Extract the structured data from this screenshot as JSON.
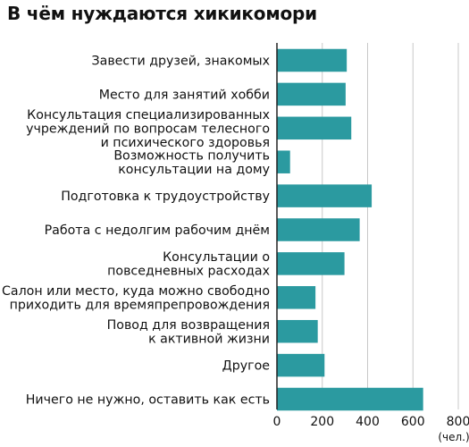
{
  "chart_data": {
    "type": "bar",
    "orientation": "horizontal",
    "title": "В чём нуждаются хикикомори",
    "categories": [
      [
        "Завести друзей, знакомых"
      ],
      [
        "Место для занятий хобби"
      ],
      [
        "Консультация специализированных",
        "учреждений по вопросам телесного",
        "и психического здоровья"
      ],
      [
        "Возможность получить",
        "консультации на дому"
      ],
      [
        "Подготовка к трудоустройству"
      ],
      [
        "Работа с недолгим рабочим днём"
      ],
      [
        "Консультации о",
        "повседневных расходах"
      ],
      [
        "Салон или место, куда можно свободно",
        "приходить для времяпрепровождения"
      ],
      [
        "Повод для возвращения",
        "к активной жизни"
      ],
      [
        "Другое"
      ],
      [
        "Ничего не нужно, оставить как есть"
      ]
    ],
    "values": [
      308,
      303,
      328,
      58,
      418,
      365,
      298,
      170,
      180,
      210,
      645
    ],
    "xlim": [
      0,
      800
    ],
    "xticks": [
      0,
      200,
      400,
      600,
      800
    ],
    "unit_label": "(чел.)",
    "grid": true,
    "colors": {
      "bar": "#2b9aa0",
      "grid": "#c8c8c8",
      "axis": "#222222"
    }
  }
}
